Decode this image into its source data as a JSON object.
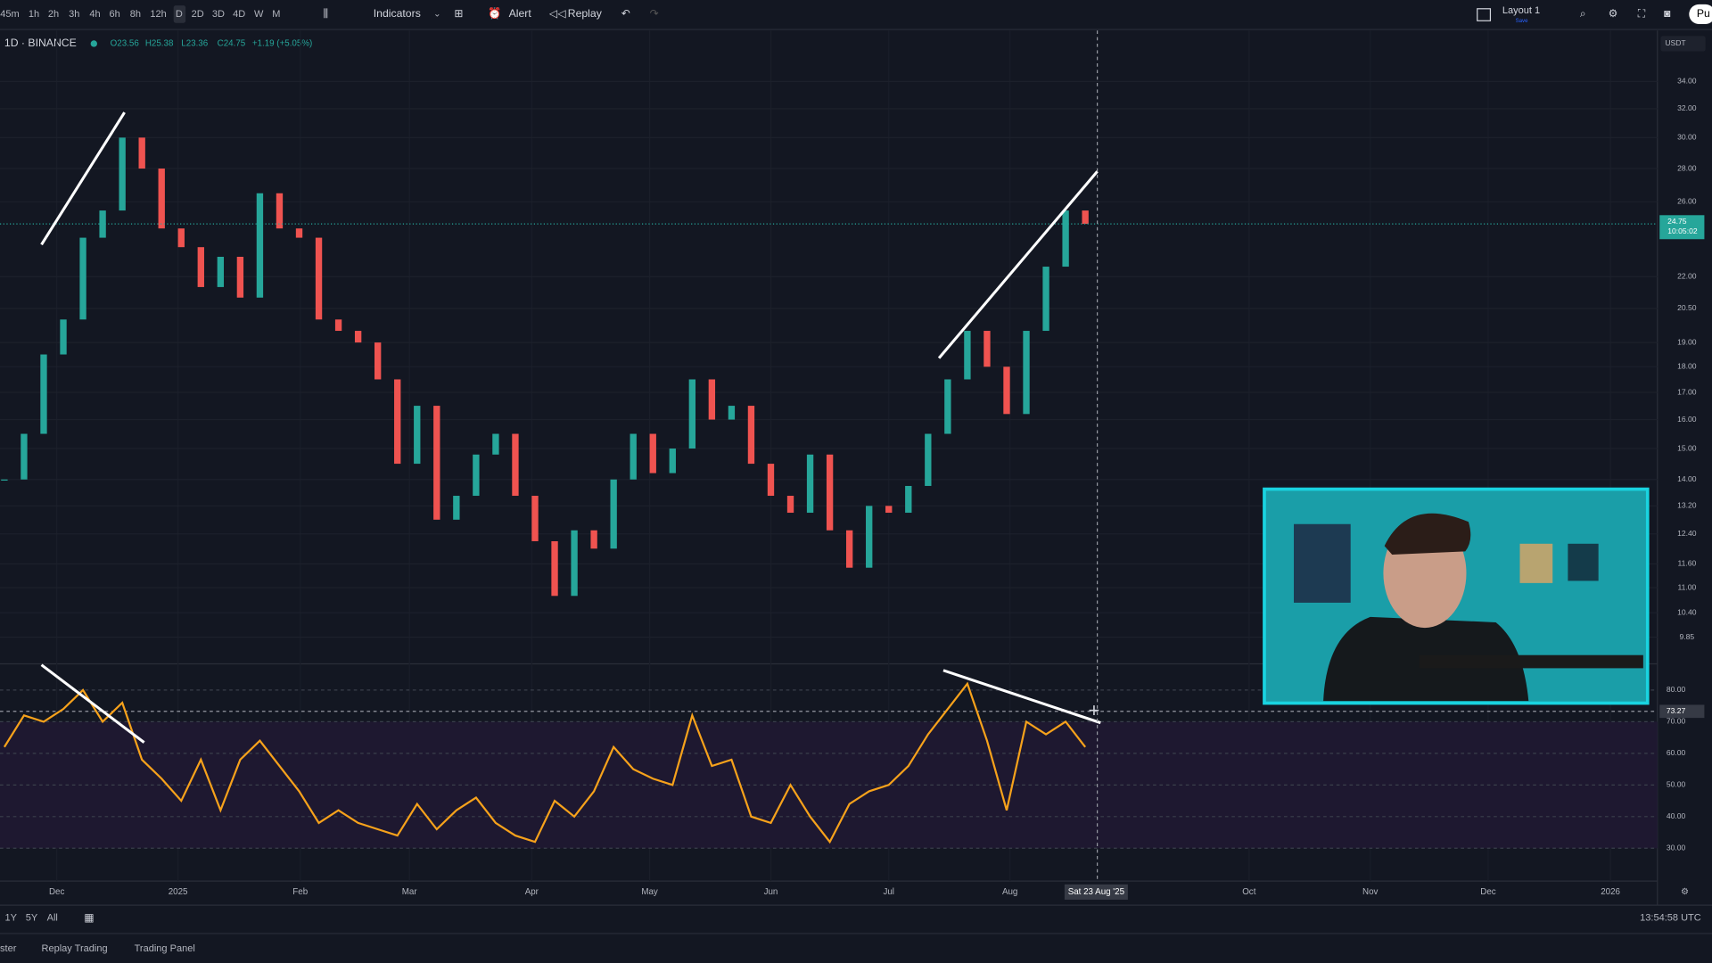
{
  "toolbar": {
    "intervals": [
      "45m",
      "1h",
      "2h",
      "3h",
      "4h",
      "6h",
      "8h",
      "12h",
      "D",
      "2D",
      "3D",
      "4D",
      "W",
      "M"
    ],
    "indicators": "Indicators",
    "alert": "Alert",
    "replay": "Replay",
    "layout": "Layout 1",
    "layout_sub": "Save",
    "profile": "Pu"
  },
  "legend": {
    "symbol": "1D · BINANCE",
    "open": "O23.56",
    "high": "H25.38",
    "low": "L23.36",
    "close": "C24.75",
    "change": "+1.19 (+5.05%)"
  },
  "currency": "USDT",
  "chart_data": [
    {
      "type": "candlestick",
      "closes": [
        14.0,
        15.5,
        18.5,
        20.0,
        24.0,
        25.5,
        30.0,
        28.0,
        24.5,
        23.5,
        21.5,
        23.0,
        21.0,
        26.5,
        24.5,
        24.0,
        20.0,
        19.5,
        19.0,
        17.5,
        14.5,
        16.5,
        12.8,
        13.5,
        14.8,
        15.5,
        13.5,
        12.2,
        10.8,
        12.5,
        12.0,
        14.0,
        15.5,
        14.2,
        15.0,
        17.5,
        16.0,
        16.5,
        14.5,
        13.5,
        13.0,
        14.8,
        12.5,
        11.5,
        13.2,
        13.0,
        13.8,
        15.5,
        17.5,
        19.5,
        18.0,
        16.2,
        19.5,
        22.5,
        25.5,
        24.75
      ],
      "up_color": "#26a69a",
      "down_color": "#ef5350",
      "log_scale": true,
      "ylim": [
        9.35,
        37.9
      ],
      "yticks": [
        {
          "value": 34,
          "label": "34.00"
        },
        {
          "value": 32,
          "label": "32.00"
        },
        {
          "value": 30,
          "label": "30.00"
        },
        {
          "value": 28,
          "label": "28.00"
        },
        {
          "value": 26,
          "label": "26.00"
        },
        {
          "value": 22,
          "label": "22.00"
        },
        {
          "value": 20.5,
          "label": "20.50"
        },
        {
          "value": 19,
          "label": "19.00"
        },
        {
          "value": 18,
          "label": "18.00"
        },
        {
          "value": 17,
          "label": "17.00"
        },
        {
          "value": 16,
          "label": "16.00"
        },
        {
          "value": 15,
          "label": "15.00"
        },
        {
          "value": 14,
          "label": "14.00"
        },
        {
          "value": 13.2,
          "label": "13.20"
        },
        {
          "value": 12.4,
          "label": "12.40"
        },
        {
          "value": 11.6,
          "label": "11.60"
        },
        {
          "value": 11,
          "label": "11.00"
        },
        {
          "value": 10.4,
          "label": "10.40"
        },
        {
          "value": 9.85,
          "label": "9.85"
        }
      ],
      "last_price": {
        "value": 24.75,
        "label": "24.75"
      },
      "countdown": "10:05:02"
    },
    {
      "type": "line",
      "values": [
        62,
        72,
        70,
        74,
        80,
        70,
        76,
        58,
        52,
        45,
        58,
        42,
        58,
        64,
        56,
        48,
        38,
        42,
        38,
        36,
        34,
        44,
        36,
        42,
        46,
        38,
        34,
        32,
        45,
        40,
        48,
        62,
        55,
        52,
        50,
        72,
        56,
        58,
        40,
        38,
        50,
        40,
        32,
        44,
        48,
        50,
        56,
        66,
        74,
        82,
        64,
        42,
        70,
        66,
        70,
        62
      ],
      "color": "#f7a21b",
      "ylim": [
        20.3,
        87.6
      ],
      "yticks": [
        {
          "value": 80,
          "label": "80.00"
        },
        73.27,
        {
          "value": 70,
          "label": "70.00"
        },
        {
          "value": 60,
          "label": "60.00"
        },
        {
          "value": 50,
          "label": "50.00"
        },
        {
          "value": 40,
          "label": "40.00"
        },
        {
          "value": 30,
          "label": "30.00"
        }
      ]
    }
  ],
  "time_axis": {
    "labels": [
      "Dec",
      "2025",
      "Feb",
      "Mar",
      "Apr",
      "May",
      "Jun",
      "Jul",
      "Aug",
      "Oct",
      "Nov",
      "Dec",
      "2026"
    ],
    "crosshair": "Sat 23 Aug '25"
  },
  "bottom": {
    "ranges": [
      "1Y",
      "5Y",
      "All"
    ],
    "clock": "13:54:58 UTC",
    "tabs": [
      "ster",
      "Replay Trading",
      "Trading Panel"
    ]
  }
}
